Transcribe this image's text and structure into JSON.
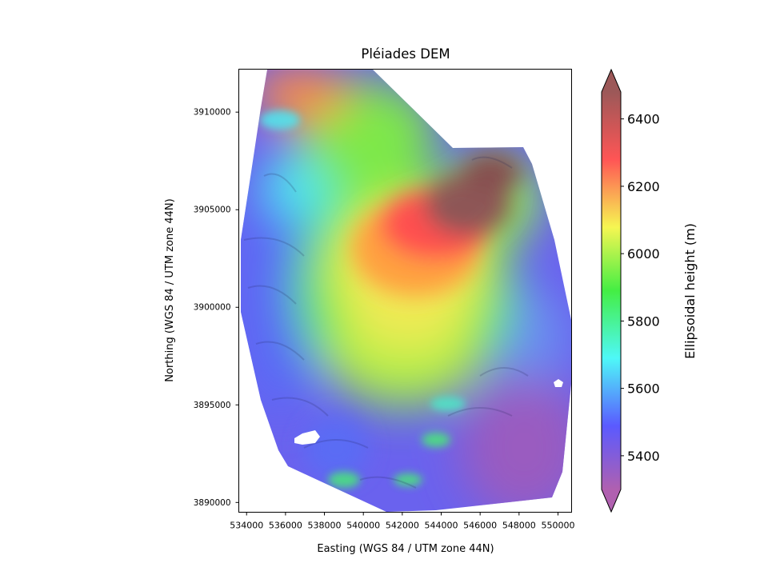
{
  "title": "Pléiades DEM",
  "xaxis": {
    "label": "Easting (WGS 84 / UTM zone 44N)",
    "ticks": [
      "534000",
      "536000",
      "538000",
      "540000",
      "542000",
      "544000",
      "546000",
      "548000",
      "550000"
    ],
    "range": [
      533600,
      550700
    ]
  },
  "yaxis": {
    "label": "Northing (WGS 84 / UTM zone 44N)",
    "ticks": [
      "3890000",
      "3895000",
      "3900000",
      "3905000",
      "3910000"
    ],
    "range": [
      3889500,
      3912200
    ]
  },
  "colorbar": {
    "label": "Ellipsoidal height (m)",
    "ticks": [
      "5400",
      "5600",
      "5800",
      "6000",
      "6200",
      "6400"
    ],
    "range": [
      5300,
      6480
    ],
    "extend": "both",
    "colormap": "rainbow with hillshade",
    "stops": [
      "#b060b0",
      "#5a5aff",
      "#4ef8f8",
      "#44ee44",
      "#f6f652",
      "#ff5555",
      "#9c5858"
    ]
  },
  "chart_data": {
    "type": "heatmap",
    "title": "Pléiades DEM",
    "xlabel": "Easting (WGS 84 / UTM zone 44N)",
    "ylabel": "Northing (WGS 84 / UTM zone 44N)",
    "xlim": [
      533600,
      550700
    ],
    "ylim": [
      3889500,
      3912200
    ],
    "value_range": [
      5300,
      6480
    ],
    "colorbar_label": "Ellipsoidal height (m)",
    "features": [
      {
        "type": "summit",
        "easting": 545000,
        "northing": 3905000,
        "height_m": 6420
      },
      {
        "type": "ridge",
        "easting": 535000,
        "northing": 3911500,
        "height_m": 6150
      },
      {
        "type": "plateau",
        "easting": 541500,
        "northing": 3898500,
        "height_m": 5980
      },
      {
        "type": "valley",
        "easting": 549000,
        "northing": 3891500,
        "height_m": 5400
      },
      {
        "type": "valley",
        "easting": 535500,
        "northing": 3897000,
        "height_m": 5560
      }
    ]
  }
}
